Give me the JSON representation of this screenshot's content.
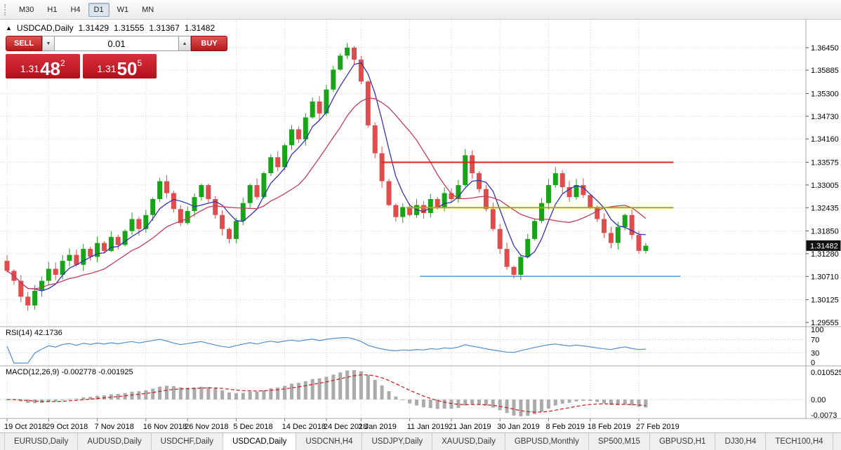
{
  "toolbar": {
    "timeframes": [
      {
        "label": "M30",
        "active": false
      },
      {
        "label": "H1",
        "active": false
      },
      {
        "label": "H4",
        "active": false
      },
      {
        "label": "D1",
        "active": true
      },
      {
        "label": "W1",
        "active": false
      },
      {
        "label": "MN",
        "active": false
      }
    ]
  },
  "header": {
    "marker": "▲",
    "symbol": "USDCAD,Daily",
    "open": "1.31429",
    "high": "1.31555",
    "low": "1.31367",
    "close": "1.31482"
  },
  "trade_panel": {
    "sell_label": "SELL",
    "buy_label": "BUY",
    "volume": "0.01",
    "volume_down_glyph": "▼",
    "volume_up_glyph": "▲",
    "sell_quote": {
      "prefix": "1.31",
      "pips": "48",
      "point": "2"
    },
    "buy_quote": {
      "prefix": "1.31",
      "pips": "50",
      "point": "5"
    }
  },
  "chart_data": {
    "type": "candlestick",
    "symbol": "USDCAD",
    "timeframe": "Daily",
    "ohlc_display": {
      "open": "1.31429",
      "high": "1.31555",
      "low": "1.31367",
      "close": "1.31482"
    },
    "first_open": 1.311,
    "closes": [
      1.3085,
      1.306,
      1.302,
      1.2998,
      1.3035,
      1.306,
      1.309,
      1.3075,
      1.311,
      1.3125,
      1.31,
      1.314,
      1.312,
      1.3155,
      1.3135,
      1.317,
      1.315,
      1.3185,
      1.3215,
      1.319,
      1.3225,
      1.3265,
      1.331,
      1.328,
      1.324,
      1.3205,
      1.3235,
      1.327,
      1.33,
      1.3265,
      1.3225,
      1.319,
      1.3165,
      1.321,
      1.3255,
      1.33,
      1.327,
      1.333,
      1.337,
      1.3345,
      1.34,
      1.344,
      1.3415,
      1.347,
      1.351,
      1.348,
      1.354,
      1.359,
      1.3625,
      1.3645,
      1.3615,
      1.356,
      1.345,
      1.338,
      1.331,
      1.325,
      1.322,
      1.3245,
      1.3225,
      1.325,
      1.323,
      1.3265,
      1.3245,
      1.328,
      1.3265,
      1.33,
      1.3375,
      1.333,
      1.329,
      1.324,
      1.319,
      1.314,
      1.3095,
      1.3075,
      1.312,
      1.3165,
      1.321,
      1.3255,
      1.33,
      1.333,
      1.3295,
      1.327,
      1.33,
      1.3275,
      1.3245,
      1.3215,
      1.318,
      1.3155,
      1.3195,
      1.3225,
      1.3175,
      1.3135,
      1.3148
    ],
    "date_ticks": [
      {
        "bar": 0,
        "label": "19 Oct 2018"
      },
      {
        "bar": 6,
        "label": "29 Oct 2018"
      },
      {
        "bar": 13,
        "label": "7 Nov 2018"
      },
      {
        "bar": 20,
        "label": "16 Nov 2018"
      },
      {
        "bar": 26,
        "label": "26 Nov 2018"
      },
      {
        "bar": 33,
        "label": "5 Dec 2018"
      },
      {
        "bar": 40,
        "label": "14 Dec 2018"
      },
      {
        "bar": 46,
        "label": "24 Dec 2018"
      },
      {
        "bar": 51,
        "label": "2 Jan 2019"
      },
      {
        "bar": 58,
        "label": "11 Jan 2019"
      },
      {
        "bar": 64,
        "label": "21 Jan 2019"
      },
      {
        "bar": 71,
        "label": "30 Jan 2019"
      },
      {
        "bar": 78,
        "label": "8 Feb 2019"
      },
      {
        "bar": 84,
        "label": "18 Feb 2019"
      },
      {
        "bar": 91,
        "label": "27 Feb 2019"
      }
    ],
    "price_scale": {
      "top_value": 1.3645,
      "bottom_value": 1.29555,
      "labels": [
        "1.36450",
        "1.35885",
        "1.35300",
        "1.34730",
        "1.34160",
        "1.33575",
        "1.33005",
        "1.32435",
        "1.31850",
        "1.31280",
        "1.30710",
        "1.30125",
        "1.29555"
      ]
    },
    "current_price": 1.31482,
    "current_price_label": "1.31482",
    "hlines": [
      {
        "name": "resistance-line",
        "price": 1.33575,
        "color": "#f02015",
        "from_bar": 54,
        "to_bar": 96,
        "width": 2
      },
      {
        "name": "pivot-line",
        "price": 1.32435,
        "color": "#a8a800",
        "from_bar": 57.5,
        "to_bar": 96,
        "width": 2
      },
      {
        "name": "support-line",
        "price": 1.3071,
        "color": "#4f9bd9",
        "from_bar": 59.5,
        "to_bar": 97,
        "width": 1.5
      }
    ],
    "moving_averages": [
      {
        "name": "ma-fast",
        "period": 5,
        "color": "#3232b4"
      },
      {
        "name": "ma-slow",
        "period": 13,
        "color": "#bf3f5a"
      }
    ],
    "indicators": {
      "rsi": {
        "label": "RSI(14) 42.1736",
        "period": 14,
        "value": 42.1736,
        "levels": [
          70,
          30
        ],
        "scale_labels": [
          {
            "text": "100",
            "value": 100
          },
          {
            "text": "70",
            "value": 70
          },
          {
            "text": "30",
            "value": 30
          },
          {
            "text": "0",
            "value": 0
          }
        ],
        "color": "#4f8fce"
      },
      "macd": {
        "label": "MACD(12,26,9) -0.002778 -0.001925",
        "fast": 12,
        "slow": 26,
        "signal_period": 9,
        "value": -0.002778,
        "signal_value": -0.001925,
        "scale_labels": [
          "0.010525",
          "0.00",
          "-0.0073"
        ],
        "histogram_color": "#ababab",
        "signal_color": "#cc1515"
      }
    },
    "colors": {
      "up_candle": "#18a418",
      "down_candle": "#e24b4b",
      "grid": "#d6d6d6",
      "current_price_bg": "#111111",
      "current_price_text": "#ffffff"
    }
  },
  "tabs": [
    {
      "label": "EURUSD,Daily",
      "active": false
    },
    {
      "label": "AUDUSD,Daily",
      "active": false
    },
    {
      "label": "USDCHF,Daily",
      "active": false
    },
    {
      "label": "USDCAD,Daily",
      "active": true
    },
    {
      "label": "USDCNH,H4",
      "active": false
    },
    {
      "label": "USDJPY,Daily",
      "active": false
    },
    {
      "label": "XAUUSD,Daily",
      "active": false
    },
    {
      "label": "GBPUSD,Monthly",
      "active": false
    },
    {
      "label": "SP500,M15",
      "active": false
    },
    {
      "label": "GBPUSD,H1",
      "active": false
    },
    {
      "label": "DJ30,H4",
      "active": false
    },
    {
      "label": "TECH100,H4",
      "active": false
    }
  ]
}
